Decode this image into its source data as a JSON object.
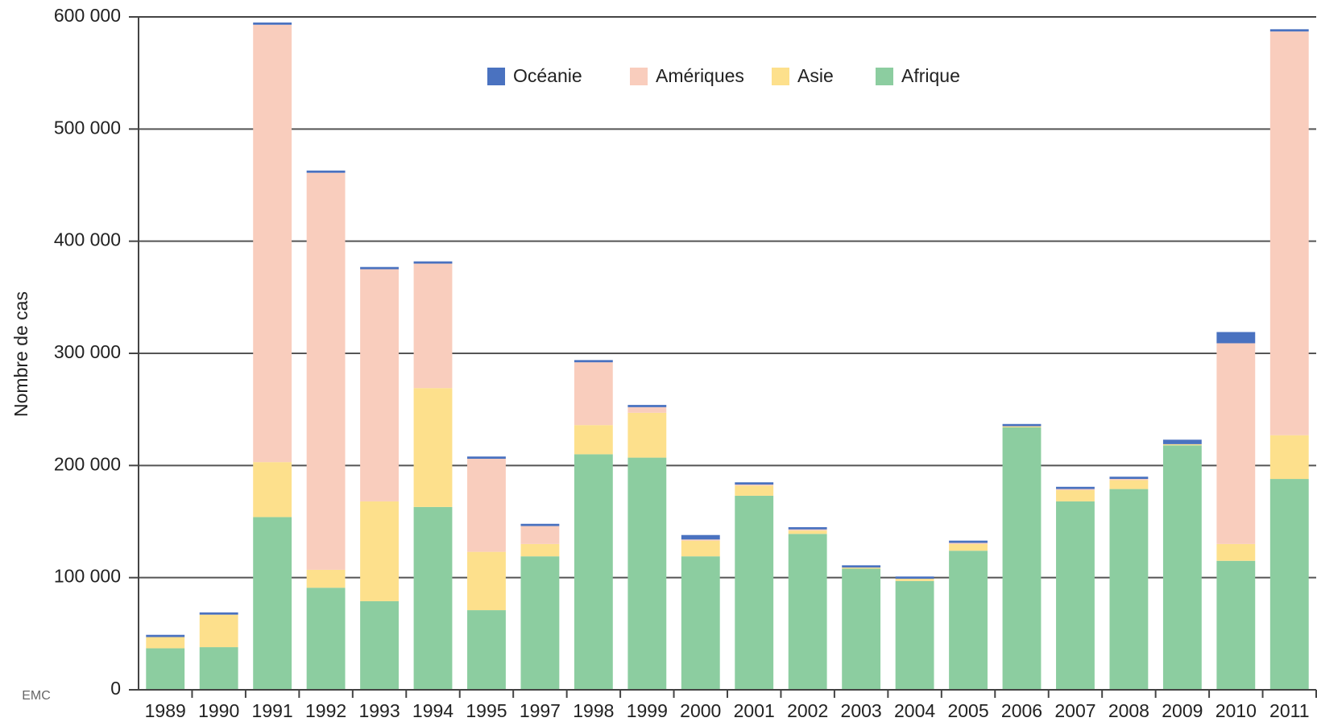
{
  "chart_data": {
    "type": "stacked_bar",
    "y_label": "Nombre de cas",
    "annotation": "EMC",
    "categories": [
      "1989",
      "1990",
      "1991",
      "1992",
      "1993",
      "1994",
      "1995",
      "1997",
      "1998",
      "1999",
      "2000",
      "2001",
      "2002",
      "2003",
      "2004",
      "2005",
      "2006",
      "2007",
      "2008",
      "2009",
      "2010",
      "2011"
    ],
    "series": [
      {
        "name": "Océanie",
        "color": "#4a72c0",
        "values": [
          2000,
          2000,
          2000,
          2000,
          2000,
          2000,
          2000,
          2000,
          2000,
          2000,
          4000,
          2000,
          2000,
          2000,
          2000,
          2000,
          2000,
          2000,
          2000,
          4000,
          10000,
          2000
        ]
      },
      {
        "name": "Amériques",
        "color": "#f9cdbd",
        "values": [
          0,
          0,
          390000,
          354000,
          207000,
          111000,
          83000,
          16000,
          56000,
          5000,
          1000,
          1000,
          1000,
          0,
          0,
          1000,
          0,
          1000,
          1000,
          0,
          179000,
          360000
        ]
      },
      {
        "name": "Asie",
        "color": "#fde08c",
        "values": [
          10000,
          29000,
          49000,
          16000,
          89000,
          106000,
          52000,
          11000,
          26000,
          40000,
          14000,
          9000,
          3000,
          1000,
          2000,
          6000,
          1000,
          10000,
          8000,
          1000,
          15000,
          39000
        ]
      },
      {
        "name": "Afrique",
        "color": "#8ccda0",
        "values": [
          37000,
          38000,
          154000,
          91000,
          79000,
          163000,
          71000,
          119000,
          210000,
          207000,
          119000,
          173000,
          139000,
          108000,
          97000,
          124000,
          234000,
          168000,
          179000,
          218000,
          115000,
          188000
        ]
      }
    ],
    "ylim": [
      0,
      600000
    ],
    "yticks": [
      0,
      {
        "value": 100000,
        "label": "100 000"
      },
      {
        "value": 200000,
        "label": "200 000"
      },
      {
        "value": 300000,
        "label": "300 000"
      },
      {
        "value": 400000,
        "label": "400 000"
      },
      {
        "value": 500000,
        "label": "500 000"
      },
      {
        "value": 600000,
        "label": "600 000"
      }
    ],
    "grid": true,
    "legend": "top"
  }
}
